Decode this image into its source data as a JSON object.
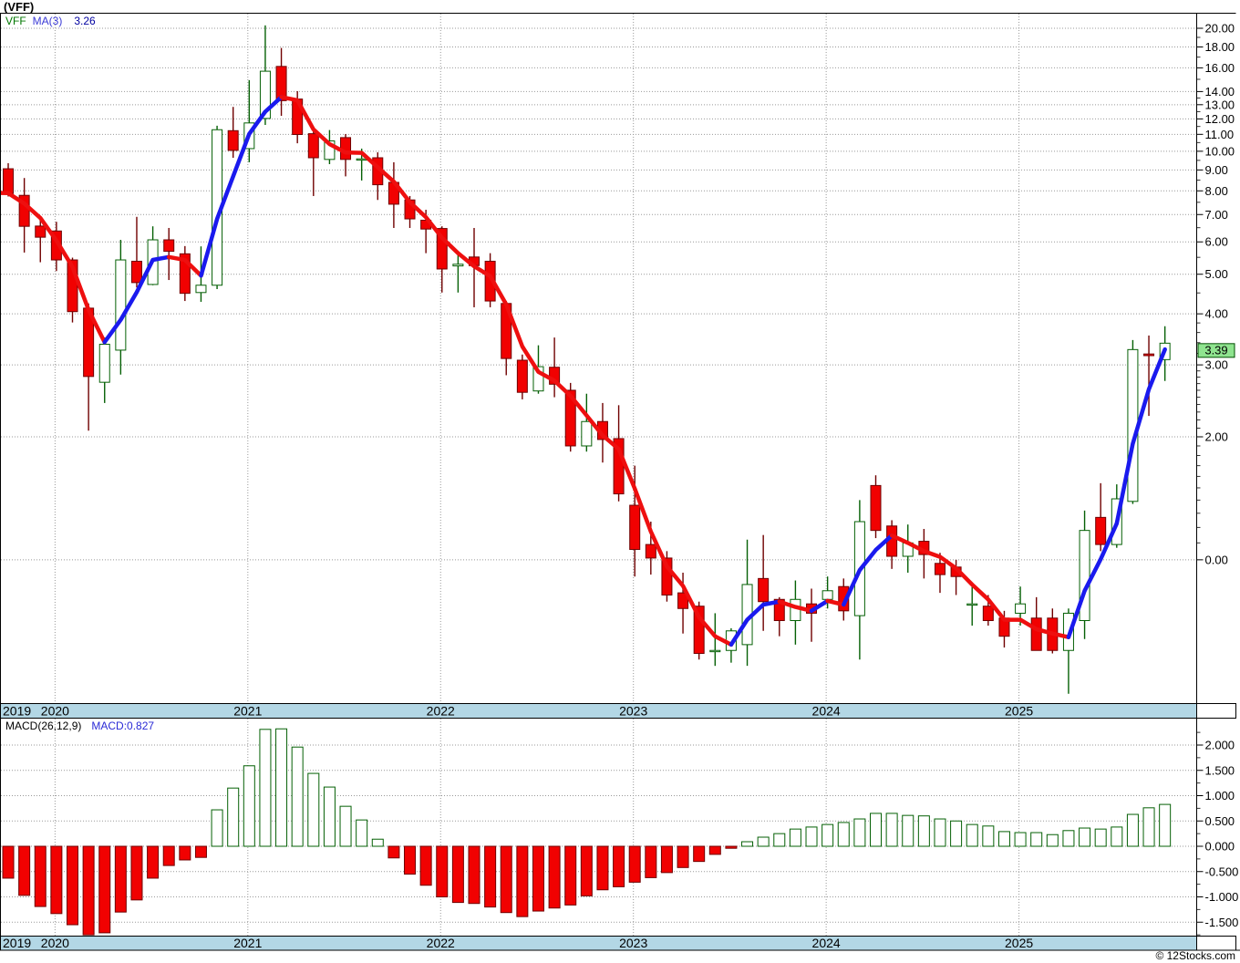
{
  "title": "(VFF)",
  "copyright": "© 12Stocks.com",
  "price_panel": {
    "legend": {
      "symbol": "VFF",
      "ma_label": "MA(3)",
      "ma_value": "3.26"
    },
    "last_price_badge": "3.39",
    "axis_labels": [
      [
        "20.00",
        20
      ],
      [
        "18.00",
        18
      ],
      [
        "16.00",
        16
      ],
      [
        "14.00",
        14
      ],
      [
        "13.00",
        13
      ],
      [
        "12.00",
        12
      ],
      [
        "11.00",
        11
      ],
      [
        "10.00",
        10
      ],
      [
        "9.00",
        9
      ],
      [
        "8.00",
        8
      ],
      [
        "7.00",
        7
      ],
      [
        "6.00",
        6
      ],
      [
        "5.00",
        5
      ],
      [
        "4.00",
        4
      ],
      [
        "3.00",
        3
      ],
      [
        "2.00",
        2
      ],
      [
        "0.00",
        1
      ]
    ]
  },
  "macd_panel": {
    "legend": {
      "label": "MACD(26,12,9)",
      "value": "MACD:0.827"
    },
    "axis_labels": [
      [
        "2.000",
        2
      ],
      [
        "1.500",
        1.5
      ],
      [
        "1.000",
        1
      ],
      [
        "0.500",
        0.5
      ],
      [
        "0.000",
        0
      ],
      [
        "-0.500",
        -0.5
      ],
      [
        "-1.000",
        -1
      ],
      [
        "-1.500",
        -1.5
      ]
    ]
  },
  "years": [
    "2019",
    "2020",
    "2021",
    "2022",
    "2023",
    "2024",
    "2025"
  ],
  "colors": {
    "background": "#ffffff",
    "up": "#056005",
    "up_fill": "#ffffff",
    "down": "#700000",
    "down_fill": "#f10101",
    "ma_up": "#1a1aee",
    "ma_down": "#ee0f0f",
    "grid": "#999999",
    "date_bar": "#b3d7e5",
    "badge_bg": "#8fe48f",
    "badge_border": "#004d00",
    "border": "#000000"
  },
  "chart_data": {
    "type": "candlestick",
    "symbol": "VFF",
    "interval": "monthly",
    "scale": "log",
    "title": "(VFF)",
    "legend": [
      "VFF",
      "MA(3) 3.26",
      "MACD(26,12,9) MACD:0.827"
    ],
    "price_axis_range": [
      0.45,
      21.8
    ],
    "macd_axis_range": [
      -1.77,
      2.53
    ],
    "ma_period": 3,
    "ma_last": 3.26,
    "last_close": 3.39,
    "macd_params": "26,12,9",
    "macd_last": 0.827,
    "x_months": [
      "2019-09",
      "2019-10",
      "2019-11",
      "2019-12",
      "2020-01",
      "2020-02",
      "2020-03",
      "2020-04",
      "2020-05",
      "2020-06",
      "2020-07",
      "2020-08",
      "2020-09",
      "2020-10",
      "2020-11",
      "2020-12",
      "2021-01",
      "2021-02",
      "2021-03",
      "2021-04",
      "2021-05",
      "2021-06",
      "2021-07",
      "2021-08",
      "2021-09",
      "2021-10",
      "2021-11",
      "2021-12",
      "2022-01",
      "2022-02",
      "2022-03",
      "2022-04",
      "2022-05",
      "2022-06",
      "2022-07",
      "2022-08",
      "2022-09",
      "2022-10",
      "2022-11",
      "2022-12",
      "2023-01",
      "2023-02",
      "2023-03",
      "2023-04",
      "2023-05",
      "2023-06",
      "2023-07",
      "2023-08",
      "2023-09",
      "2023-10",
      "2023-11",
      "2023-12",
      "2024-01",
      "2024-02",
      "2024-03",
      "2024-04",
      "2024-05",
      "2024-06",
      "2024-07",
      "2024-08",
      "2024-09",
      "2024-10",
      "2024-11",
      "2024-12",
      "2025-01",
      "2025-02",
      "2025-03",
      "2025-04",
      "2025-05",
      "2025-06",
      "2025-07",
      "2025-08",
      "2025-09",
      "2025-10"
    ],
    "ohlc": [
      [
        8.45,
        8.6,
        7.8,
        7.91
      ],
      [
        9.06,
        9.35,
        7.75,
        7.88
      ],
      [
        7.8,
        8.6,
        5.65,
        6.55
      ],
      [
        6.56,
        6.8,
        5.35,
        6.16
      ],
      [
        6.38,
        6.72,
        5.09,
        5.42
      ],
      [
        5.42,
        5.49,
        3.81,
        4.05
      ],
      [
        4.13,
        4.24,
        2.07,
        2.81
      ],
      [
        2.72,
        3.5,
        2.42,
        3.37
      ],
      [
        3.26,
        6.07,
        2.84,
        5.42
      ],
      [
        5.38,
        6.91,
        4.64,
        4.77
      ],
      [
        4.72,
        6.55,
        4.7,
        6.07
      ],
      [
        6.07,
        6.49,
        4.84,
        5.69
      ],
      [
        5.61,
        5.86,
        4.3,
        4.49
      ],
      [
        4.51,
        5.85,
        4.28,
        4.7
      ],
      [
        4.7,
        11.55,
        4.6,
        11.29
      ],
      [
        11.23,
        12.84,
        9.64,
        10.05
      ],
      [
        10.15,
        14.93,
        9.4,
        11.73
      ],
      [
        12.03,
        20.33,
        11.6,
        15.7
      ],
      [
        16.13,
        17.9,
        12.21,
        13.3
      ],
      [
        13.42,
        14.03,
        10.46,
        10.99
      ],
      [
        11.04,
        11.22,
        7.77,
        9.64
      ],
      [
        9.55,
        11.27,
        9.3,
        10.6
      ],
      [
        10.8,
        11.02,
        8.68,
        9.55
      ],
      [
        9.55,
        10.15,
        8.48,
        9.58
      ],
      [
        9.64,
        9.94,
        7.6,
        8.28
      ],
      [
        8.39,
        9.4,
        6.49,
        7.42
      ],
      [
        7.6,
        7.77,
        6.49,
        6.83
      ],
      [
        6.78,
        7.19,
        5.63,
        6.45
      ],
      [
        6.47,
        6.55,
        4.51,
        5.15
      ],
      [
        5.24,
        5.66,
        4.51,
        5.29
      ],
      [
        5.51,
        6.49,
        4.15,
        5.25
      ],
      [
        5.38,
        5.63,
        4.15,
        4.3
      ],
      [
        4.24,
        4.3,
        2.83,
        3.11
      ],
      [
        3.08,
        3.18,
        2.47,
        2.57
      ],
      [
        2.59,
        3.35,
        2.55,
        2.97
      ],
      [
        2.96,
        3.5,
        2.5,
        2.69
      ],
      [
        2.6,
        2.71,
        1.84,
        1.9
      ],
      [
        1.9,
        2.55,
        1.84,
        2.18
      ],
      [
        2.18,
        2.42,
        1.73,
        1.97
      ],
      [
        1.98,
        2.39,
        1.39,
        1.45
      ],
      [
        1.36,
        1.7,
        0.91,
        1.06
      ],
      [
        1.09,
        1.24,
        0.92,
        1.01
      ],
      [
        1.01,
        1.05,
        0.79,
        0.82
      ],
      [
        0.83,
        0.93,
        0.66,
        0.76
      ],
      [
        0.77,
        0.79,
        0.57,
        0.59
      ],
      [
        0.6,
        0.74,
        0.55,
        0.6
      ],
      [
        0.6,
        0.68,
        0.56,
        0.67
      ],
      [
        0.62,
        1.12,
        0.55,
        0.87
      ],
      [
        0.9,
        1.15,
        0.67,
        0.79
      ],
      [
        0.8,
        0.81,
        0.65,
        0.71
      ],
      [
        0.71,
        0.89,
        0.62,
        0.8
      ],
      [
        0.78,
        0.85,
        0.63,
        0.74
      ],
      [
        0.8,
        0.91,
        0.76,
        0.84
      ],
      [
        0.86,
        0.9,
        0.71,
        0.75
      ],
      [
        0.73,
        1.4,
        0.57,
        1.24
      ],
      [
        1.52,
        1.61,
        1.13,
        1.18
      ],
      [
        1.21,
        1.25,
        0.95,
        1.02
      ],
      [
        1.02,
        1.22,
        0.93,
        1.1
      ],
      [
        1.11,
        1.19,
        0.9,
        1.03
      ],
      [
        0.98,
        1.04,
        0.83,
        0.92
      ],
      [
        0.96,
        1.0,
        0.82,
        0.91
      ],
      [
        0.78,
        0.87,
        0.69,
        0.78
      ],
      [
        0.77,
        0.82,
        0.69,
        0.71
      ],
      [
        0.72,
        0.75,
        0.61,
        0.65
      ],
      [
        0.74,
        0.86,
        0.69,
        0.78
      ],
      [
        0.72,
        0.81,
        0.6,
        0.6
      ],
      [
        0.72,
        0.76,
        0.59,
        0.6
      ],
      [
        0.6,
        0.76,
        0.47,
        0.74
      ],
      [
        0.71,
        1.32,
        0.64,
        1.18
      ],
      [
        1.27,
        1.54,
        1.05,
        1.09
      ],
      [
        1.09,
        1.53,
        1.07,
        1.41
      ],
      [
        1.39,
        3.45,
        1.37,
        3.27
      ],
      [
        3.19,
        3.54,
        2.25,
        3.16
      ],
      [
        3.09,
        3.73,
        2.74,
        3.39
      ]
    ],
    "macd_histogram": [
      -0.5,
      -0.63,
      -0.97,
      -1.19,
      -1.33,
      -1.55,
      -1.75,
      -1.71,
      -1.3,
      -1.06,
      -0.63,
      -0.38,
      -0.27,
      -0.22,
      0.72,
      1.15,
      1.59,
      2.31,
      2.32,
      1.96,
      1.44,
      1.17,
      0.79,
      0.52,
      0.14,
      -0.23,
      -0.55,
      -0.77,
      -1.0,
      -1.11,
      -1.13,
      -1.2,
      -1.31,
      -1.39,
      -1.28,
      -1.22,
      -1.16,
      -0.98,
      -0.86,
      -0.8,
      -0.71,
      -0.62,
      -0.52,
      -0.42,
      -0.3,
      -0.16,
      -0.04,
      0.09,
      0.18,
      0.25,
      0.34,
      0.38,
      0.43,
      0.47,
      0.54,
      0.65,
      0.65,
      0.61,
      0.6,
      0.54,
      0.5,
      0.43,
      0.4,
      0.29,
      0.27,
      0.27,
      0.23,
      0.31,
      0.36,
      0.34,
      0.38,
      0.63,
      0.76,
      0.827
    ]
  }
}
